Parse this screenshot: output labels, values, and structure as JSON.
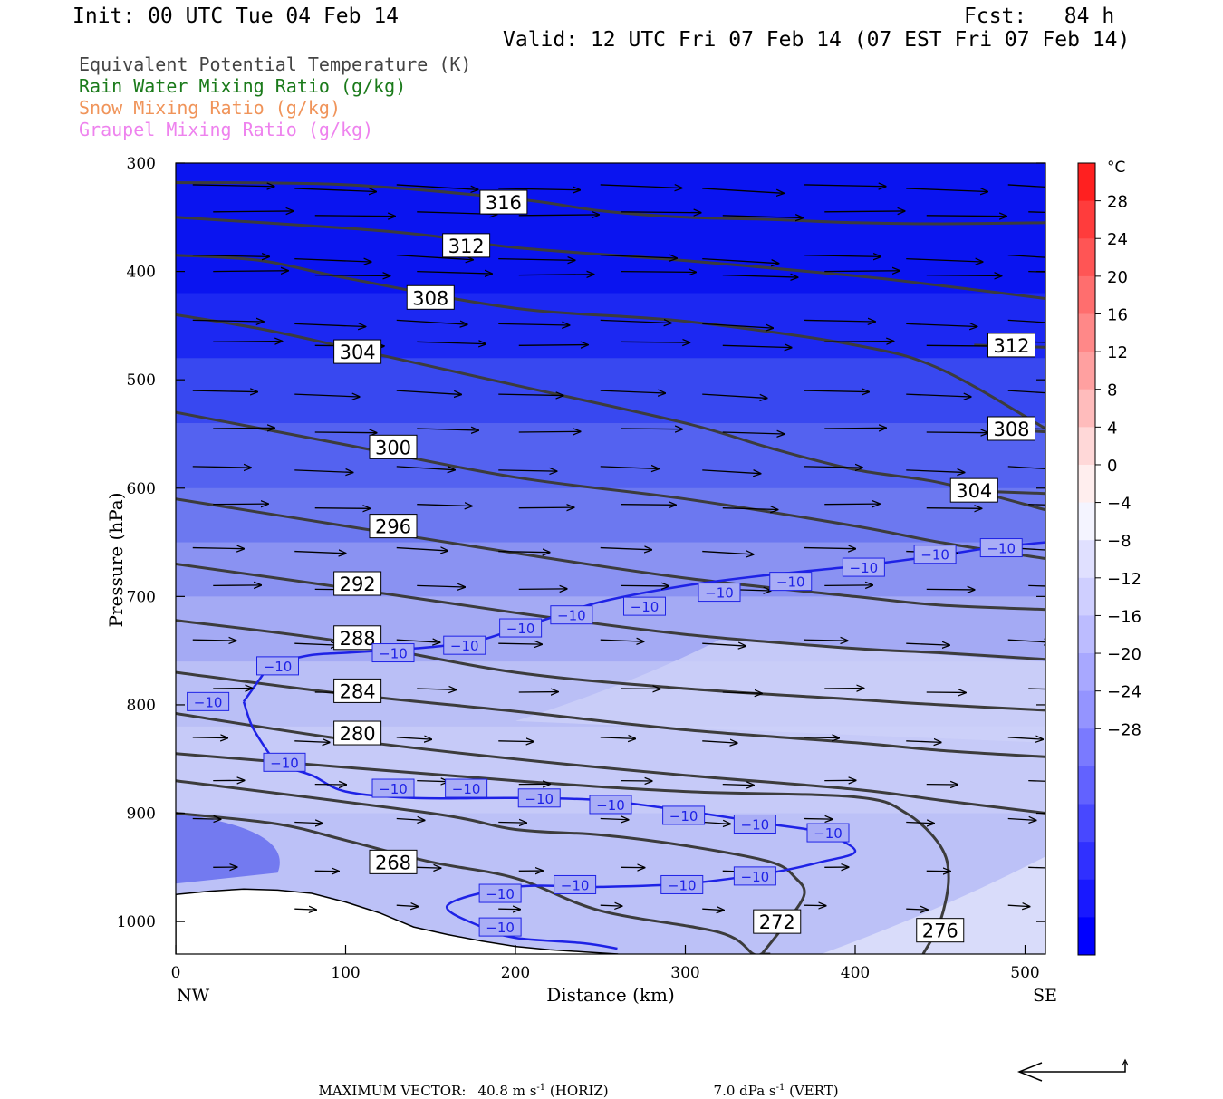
{
  "header": {
    "init": "Init: 00 UTC Tue 04 Feb 14",
    "fcst": "Fcst:   84 h",
    "valid": "Valid: 12 UTC Fri 07 Feb 14 (07 EST Fri 07 Feb 14)"
  },
  "legend": [
    {
      "label": "Equivalent Potential Temperature (K)",
      "color": "#444444"
    },
    {
      "label": "Rain Water Mixing Ratio (g/kg)",
      "color": "#1a7a1a"
    },
    {
      "label": "Snow Mixing Ratio (g/kg)",
      "color": "#f0945a"
    },
    {
      "label": "Graupel Mixing Ratio (g/kg)",
      "color": "#ee82ee"
    }
  ],
  "footer": {
    "max_vector_label": "MAXIMUM VECTOR:",
    "horiz_value": "40.8 m s",
    "horiz_unit": " (HORIZ)",
    "vert_value": "7.0 dPa s",
    "vert_unit": " (VERT)",
    "exponent": "-1"
  },
  "chart_data": {
    "type": "heatmap",
    "xlabel": "Distance (km)",
    "ylabel": "Pressure (hPa)",
    "xlim": [
      0,
      512
    ],
    "ylim": [
      300,
      1030
    ],
    "x_ticks": [
      0,
      100,
      200,
      300,
      400,
      500
    ],
    "y_ticks": [
      300,
      400,
      500,
      600,
      700,
      800,
      900,
      1000
    ],
    "x_end_labels": {
      "left": "NW",
      "right": "SE"
    },
    "colorbar": {
      "unit": "°C",
      "levels": [
        28,
        24,
        20,
        16,
        12,
        8,
        4,
        0,
        -4,
        -8,
        -12,
        -16,
        -20,
        -24,
        -28
      ],
      "level_labels": [
        "28",
        "24",
        "20",
        "16",
        "12",
        "8",
        "4",
        "0",
        "−4",
        "−8",
        "−12",
        "−16",
        "−20",
        "−24",
        "−28"
      ],
      "colors": [
        "#ff2020",
        "#ff3c3c",
        "#ff5555",
        "#ff6e6e",
        "#ff8888",
        "#ffa0a0",
        "#ffbcbc",
        "#ffd8d8",
        "#ffeeee",
        "#f4f4ff",
        "#e0e0ff",
        "#cfcfff",
        "#bcbcff",
        "#a8a8ff",
        "#9494ff",
        "#7a7aff",
        "#6262ff",
        "#4848ff",
        "#3030ff",
        "#1818ff",
        "#0000ff"
      ]
    },
    "background_bands": [
      {
        "p": 300,
        "color": "#0a14f0"
      },
      {
        "p": 420,
        "color": "#1c28f2"
      },
      {
        "p": 480,
        "color": "#3848f0"
      },
      {
        "p": 540,
        "color": "#5462f0"
      },
      {
        "p": 600,
        "color": "#6c78f0"
      },
      {
        "p": 650,
        "color": "#8a92f2"
      },
      {
        "p": 700,
        "color": "#a4aaf4"
      },
      {
        "p": 760,
        "color": "#babff6"
      },
      {
        "p": 820,
        "color": "#c6caf8"
      },
      {
        "p": 900,
        "color": "#bcc1f7"
      },
      {
        "p": 1030,
        "color": "#b0b6f6"
      }
    ],
    "theta_e_contours": [
      {
        "value": 316,
        "x": [
          0,
          100,
          200,
          250,
          300,
          350,
          400,
          450,
          512
        ],
        "p": [
          318,
          320,
          333,
          344,
          350,
          352,
          355,
          356,
          355
        ],
        "label_at": [
          193,
          336
        ]
      },
      {
        "value": 312,
        "x": [
          0,
          100,
          150,
          200,
          300,
          400,
          450,
          512
        ],
        "p": [
          350,
          360,
          367,
          378,
          390,
          404,
          413,
          425
        ],
        "label_at": [
          171,
          376
        ]
      },
      {
        "value": 312,
        "x": [
          470,
          512
        ],
        "p": [
          468,
          470
        ],
        "label_at": [
          492,
          468
        ]
      },
      {
        "value": 308,
        "x": [
          0,
          50,
          100,
          200,
          300,
          400,
          450,
          512
        ],
        "p": [
          385,
          390,
          406,
          434,
          446,
          468,
          490,
          545
        ],
        "label_at": [
          150,
          424
        ]
      },
      {
        "value": 308,
        "x": [
          480,
          512
        ],
        "p": [
          545,
          548
        ],
        "label_at": [
          492,
          545
        ]
      },
      {
        "value": 304,
        "x": [
          0,
          50,
          100,
          200,
          300,
          350,
          400,
          450,
          512
        ],
        "p": [
          440,
          453,
          470,
          505,
          540,
          563,
          583,
          595,
          620
        ],
        "label_at": [
          107,
          474
        ]
      },
      {
        "value": 304,
        "x": [
          460,
          512
        ],
        "p": [
          602,
          605
        ],
        "label_at": [
          470,
          602
        ]
      },
      {
        "value": 300,
        "x": [
          0,
          100,
          200,
          300,
          400,
          450,
          512
        ],
        "p": [
          530,
          560,
          590,
          610,
          635,
          650,
          665
        ],
        "label_at": [
          128,
          562
        ]
      },
      {
        "value": 296,
        "x": [
          0,
          100,
          200,
          300,
          400,
          450,
          512
        ],
        "p": [
          610,
          635,
          660,
          683,
          700,
          708,
          712
        ],
        "label_at": [
          128,
          635
        ]
      },
      {
        "value": 292,
        "x": [
          0,
          100,
          200,
          300,
          400,
          450,
          512
        ],
        "p": [
          670,
          692,
          715,
          735,
          748,
          752,
          758
        ],
        "label_at": [
          107,
          688
        ]
      },
      {
        "value": 288,
        "x": [
          0,
          100,
          200,
          300,
          400,
          450,
          512
        ],
        "p": [
          722,
          742,
          770,
          785,
          795,
          800,
          805
        ],
        "label_at": [
          107,
          738
        ]
      },
      {
        "value": 284,
        "x": [
          0,
          100,
          200,
          300,
          400,
          450,
          512
        ],
        "p": [
          770,
          790,
          806,
          823,
          835,
          842,
          848
        ],
        "label_at": [
          107,
          787
        ]
      },
      {
        "value": 280,
        "x": [
          0,
          100,
          200,
          300,
          400,
          450,
          512
        ],
        "p": [
          808,
          832,
          850,
          865,
          878,
          888,
          900
        ],
        "label_at": [
          107,
          826
        ]
      },
      {
        "value": 268,
        "x": [
          0,
          60,
          100,
          150,
          200,
          250,
          320,
          340,
          345,
          350
        ],
        "p": [
          900,
          910,
          925,
          945,
          960,
          990,
          1010,
          1030,
          1030,
          1030
        ],
        "label_at": [
          128,
          945
        ]
      },
      {
        "value": 272,
        "x": [
          0,
          150,
          200,
          250,
          300,
          350,
          365,
          370,
          360,
          345
        ],
        "p": [
          870,
          900,
          915,
          920,
          930,
          945,
          960,
          975,
          1000,
          1030
        ],
        "label_at": [
          354,
          1000
        ]
      },
      {
        "value": 276,
        "x": [
          0,
          200,
          300,
          400,
          430,
          450,
          455,
          450,
          440
        ],
        "p": [
          845,
          870,
          880,
          885,
          900,
          930,
          960,
          1000,
          1030
        ],
        "label_at": [
          450,
          1008
        ]
      }
    ],
    "minus10_isotherm": {
      "value": -10,
      "x": [
        40,
        50,
        55,
        60,
        80,
        100,
        120,
        140,
        160,
        180,
        200,
        220,
        250,
        300,
        350,
        400,
        450,
        480,
        512
      ],
      "p": [
        797,
        775,
        764,
        761,
        754,
        752,
        750,
        748,
        745,
        740,
        730,
        720,
        705,
        690,
        680,
        672,
        662,
        655,
        650
      ],
      "label_points": [
        [
          60,
          764
        ],
        [
          128,
          752
        ],
        [
          170,
          745
        ],
        [
          203,
          729
        ],
        [
          233,
          717
        ],
        [
          276,
          709
        ],
        [
          320,
          696
        ],
        [
          362,
          686
        ],
        [
          405,
          673
        ],
        [
          447,
          661
        ],
        [
          486,
          655
        ]
      ],
      "lower_x": [
        40,
        45,
        55,
        60,
        80,
        100,
        140,
        200,
        250,
        300,
        350,
        380,
        400,
        380,
        350,
        300,
        250,
        200,
        160,
        180,
        200,
        240,
        260
      ],
      "lower_p": [
        797,
        820,
        845,
        855,
        865,
        880,
        886,
        886,
        888,
        898,
        910,
        918,
        935,
        945,
        955,
        965,
        968,
        968,
        985,
        1005,
        1015,
        1020,
        1025
      ],
      "lower_label_points": [
        [
          19,
          797
        ],
        [
          64,
          853
        ],
        [
          128,
          877
        ],
        [
          171,
          877
        ],
        [
          214,
          886
        ],
        [
          256,
          892
        ],
        [
          299,
          902
        ],
        [
          341,
          910
        ],
        [
          384,
          918
        ],
        [
          341,
          958
        ],
        [
          298,
          966
        ],
        [
          235,
          966
        ],
        [
          191,
          974
        ],
        [
          191,
          1005
        ]
      ]
    },
    "terrain": {
      "x": [
        0,
        20,
        40,
        60,
        80,
        100,
        120,
        140,
        160,
        180,
        200,
        220,
        240,
        260
      ],
      "p": [
        975,
        972,
        970,
        971,
        974,
        982,
        992,
        1005,
        1012,
        1018,
        1023,
        1026,
        1028,
        1030
      ]
    },
    "wind_grid": {
      "x": [
        10,
        70,
        130,
        190,
        250,
        310,
        370,
        430,
        490
      ],
      "p": [
        320,
        345,
        385,
        400,
        445,
        465,
        510,
        545,
        580,
        615,
        655,
        690,
        740,
        785,
        830,
        870,
        905,
        950,
        985
      ],
      "max_u": 40.8,
      "unit": "m s-1"
    }
  }
}
